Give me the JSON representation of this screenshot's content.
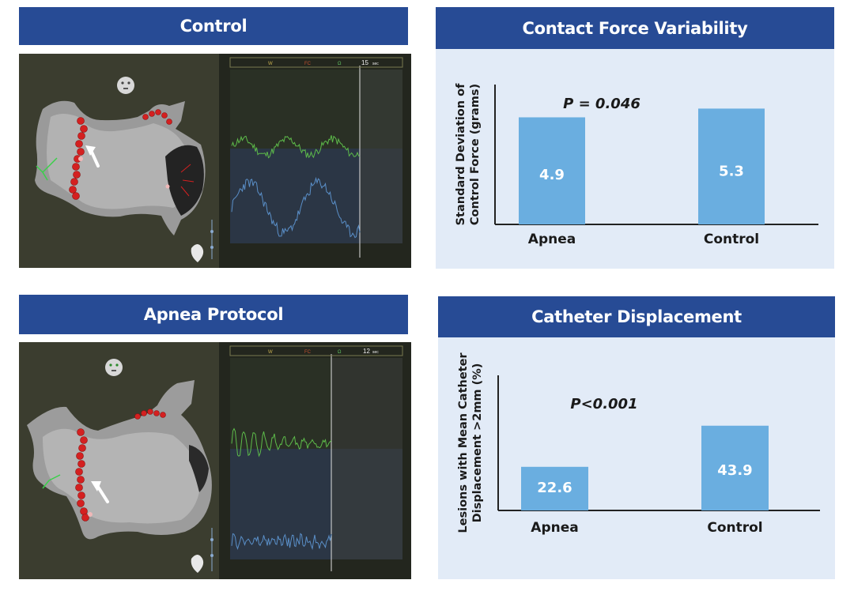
{
  "panels": {
    "control_header": "Control",
    "apnea_header": "Apnea Protocol",
    "contact_force_header": "Contact Force Variability",
    "catheter_header": "Catheter Displacement"
  },
  "control_trace": {
    "legend": [
      "W",
      "FC",
      "Ω"
    ],
    "time_label": "15",
    "time_unit": "sec"
  },
  "apnea_trace": {
    "legend": [
      "W",
      "FC",
      "Ω"
    ],
    "time_label": "12",
    "time_unit": "sec"
  },
  "colors": {
    "header_blue": "#274b95",
    "panel_bg": "#e2ebf7",
    "bar_fill": "#6aaee0",
    "ablation_red": "#d42020",
    "trace_green": "#5dbb4a",
    "trace_blue": "#5a8fc8"
  },
  "chart_data": [
    {
      "type": "bar",
      "title": "Contact Force Variability",
      "categories": [
        "Apnea",
        "Control"
      ],
      "values": [
        4.9,
        5.3
      ],
      "value_labels": [
        "4.9",
        "5.3"
      ],
      "ylabel_lines": [
        "Standard Deviation of",
        "Control Force (grams)"
      ],
      "annotation": "P = 0.046",
      "ylim": [
        0,
        6.4
      ],
      "grid": false
    },
    {
      "type": "bar",
      "title": "Catheter Displacement",
      "categories": [
        "Apnea",
        "Control"
      ],
      "values": [
        22.6,
        43.9
      ],
      "value_labels": [
        "22.6",
        "43.9"
      ],
      "ylabel_lines": [
        "Lesions with Mean Catheter",
        "Displacement >2mm (%)"
      ],
      "annotation": "P<0.001",
      "ylim": [
        0,
        70
      ],
      "grid": false
    }
  ]
}
